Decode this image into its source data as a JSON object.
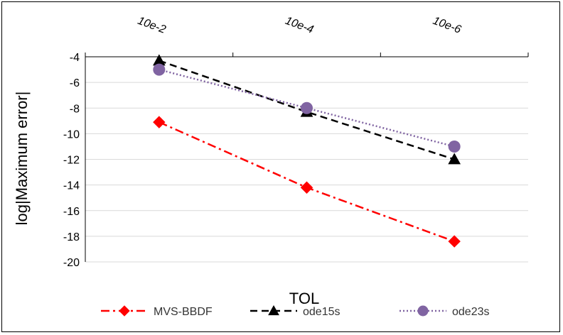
{
  "chart_data": {
    "type": "line",
    "title": "",
    "xlabel": "TOL",
    "ylabel": "log|Maximum error|",
    "categories": [
      "10e-2",
      "10e-4",
      "10e-6"
    ],
    "ylim": [
      -20,
      -4
    ],
    "yticks": [
      -4,
      -6,
      -8,
      -10,
      -12,
      -14,
      -16,
      -18,
      -20
    ],
    "x_axis_position": "top",
    "grid": "horizontal",
    "legend_position": "bottom",
    "series": [
      {
        "name": "MVS-BBDF",
        "values": [
          -9.1,
          -14.2,
          -18.4
        ],
        "color": "#ff0000",
        "line_style": "dash-dot",
        "marker": "diamond"
      },
      {
        "name": "ode15s",
        "values": [
          -4.3,
          -8.3,
          -12.0
        ],
        "color": "#000000",
        "line_style": "dashed",
        "marker": "triangle"
      },
      {
        "name": "ode23s",
        "values": [
          -5.0,
          -8.0,
          -11.0
        ],
        "color": "#8064a2",
        "line_style": "dotted",
        "marker": "circle"
      }
    ]
  }
}
